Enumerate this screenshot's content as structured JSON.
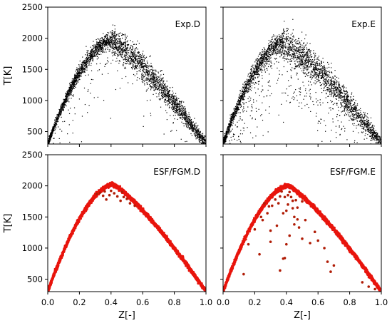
{
  "figure": {
    "colors": {
      "experiment": "#000000",
      "model_band": "#f5b3e8",
      "model_line": "#e8140c",
      "model_points": "#b01c06"
    }
  },
  "chart_data": [
    {
      "type": "scatter",
      "panel": "top-left",
      "annotation": "Exp.D",
      "xlabel": "",
      "ylabel": "T[K]",
      "xlim": [
        0.0,
        1.0
      ],
      "ylim": [
        300,
        2500
      ],
      "xticks": [],
      "yticks": [
        "500",
        "1000",
        "1500",
        "2000",
        "2500"
      ],
      "style": "experiment",
      "n_points": 3500,
      "peak": {
        "x": 0.4,
        "y": 1960
      },
      "endpoints": {
        "x0": 0.0,
        "y0": 300,
        "x1": 1.0,
        "y1": 300
      },
      "scatter_spread": {
        "rise": 70,
        "fall": 110
      },
      "outlier_fraction": 0.04
    },
    {
      "type": "scatter",
      "panel": "top-right",
      "annotation": "Exp.E",
      "xlabel": "",
      "ylabel": "",
      "xlim": [
        0.0,
        1.0
      ],
      "ylim": [
        300,
        2500
      ],
      "xticks": [],
      "yticks": [],
      "style": "experiment",
      "n_points": 3500,
      "peak": {
        "x": 0.38,
        "y": 1930
      },
      "endpoints": {
        "x0": 0.0,
        "y0": 300,
        "x1": 1.0,
        "y1": 300
      },
      "scatter_spread": {
        "rise": 90,
        "fall": 130
      },
      "outlier_fraction": 0.14
    },
    {
      "type": "scatter",
      "panel": "bottom-left",
      "annotation": "ESF/FGM.D",
      "xlabel": "Z[-]",
      "ylabel": "T[K]",
      "xlim": [
        0.0,
        1.0
      ],
      "ylim": [
        300,
        2500
      ],
      "xticks": [
        "0.0",
        "0.2",
        "0.4",
        "0.6",
        "0.8",
        "1.0"
      ],
      "yticks": [
        "500",
        "1000",
        "1500",
        "2000",
        "2500"
      ],
      "style": "model",
      "peak": {
        "x": 0.41,
        "y": 2020
      },
      "endpoints": {
        "x0": 0.0,
        "y0": 300,
        "x1": 1.0,
        "y1": 300
      },
      "band_half_width": 45,
      "n_line_points": 2600,
      "line_spread": 25,
      "outliers": [
        [
          0.33,
          1890
        ],
        [
          0.35,
          1840
        ],
        [
          0.37,
          1780
        ],
        [
          0.39,
          1850
        ],
        [
          0.42,
          1880
        ],
        [
          0.44,
          1830
        ],
        [
          0.46,
          1760
        ],
        [
          0.48,
          1820
        ],
        [
          0.52,
          1720
        ],
        [
          0.55,
          1680
        ],
        [
          0.4,
          1920
        ],
        [
          0.36,
          1910
        ],
        [
          0.47,
          1900
        ],
        [
          0.31,
          1870
        ],
        [
          0.5,
          1790
        ]
      ]
    },
    {
      "type": "scatter",
      "panel": "bottom-right",
      "annotation": "ESF/FGM.E",
      "xlabel": "Z[-]",
      "ylabel": "",
      "xlim": [
        0.0,
        1.0
      ],
      "ylim": [
        300,
        2500
      ],
      "xticks": [
        "0.0",
        "0.2",
        "0.4",
        "0.6",
        "0.8",
        "1.0"
      ],
      "yticks": [],
      "style": "model",
      "peak": {
        "x": 0.41,
        "y": 2000
      },
      "endpoints": {
        "x0": 0.0,
        "y0": 300,
        "x1": 1.0,
        "y1": 300
      },
      "band_half_width": 45,
      "n_line_points": 2600,
      "line_spread": 25,
      "outliers": [
        [
          0.13,
          580
        ],
        [
          0.16,
          1060
        ],
        [
          0.2,
          1300
        ],
        [
          0.24,
          1500
        ],
        [
          0.25,
          1450
        ],
        [
          0.28,
          1560
        ],
        [
          0.29,
          1670
        ],
        [
          0.3,
          1100
        ],
        [
          0.3,
          1280
        ],
        [
          0.31,
          1680
        ],
        [
          0.33,
          1780
        ],
        [
          0.34,
          1360
        ],
        [
          0.36,
          1830
        ],
        [
          0.37,
          1910
        ],
        [
          0.38,
          1560
        ],
        [
          0.4,
          1600
        ],
        [
          0.4,
          1060
        ],
        [
          0.41,
          1700
        ],
        [
          0.42,
          1900
        ],
        [
          0.42,
          1200
        ],
        [
          0.43,
          1820
        ],
        [
          0.44,
          1760
        ],
        [
          0.44,
          1640
        ],
        [
          0.45,
          1500
        ],
        [
          0.45,
          1380
        ],
        [
          0.46,
          1770
        ],
        [
          0.47,
          1460
        ],
        [
          0.48,
          1330
        ],
        [
          0.5,
          1150
        ],
        [
          0.52,
          1450
        ],
        [
          0.55,
          1080
        ],
        [
          0.58,
          1260
        ],
        [
          0.6,
          1120
        ],
        [
          0.64,
          1000
        ],
        [
          0.66,
          780
        ],
        [
          0.68,
          620
        ],
        [
          0.7,
          720
        ],
        [
          0.88,
          450
        ],
        [
          0.92,
          380
        ],
        [
          0.96,
          340
        ],
        [
          0.23,
          900
        ],
        [
          0.26,
          1720
        ],
        [
          0.38,
          830
        ],
        [
          0.39,
          840
        ],
        [
          0.36,
          640
        ],
        [
          0.39,
          1820
        ],
        [
          0.41,
          1850
        ],
        [
          0.35,
          1720
        ],
        [
          0.47,
          1650
        ],
        [
          0.5,
          1750
        ]
      ]
    }
  ]
}
